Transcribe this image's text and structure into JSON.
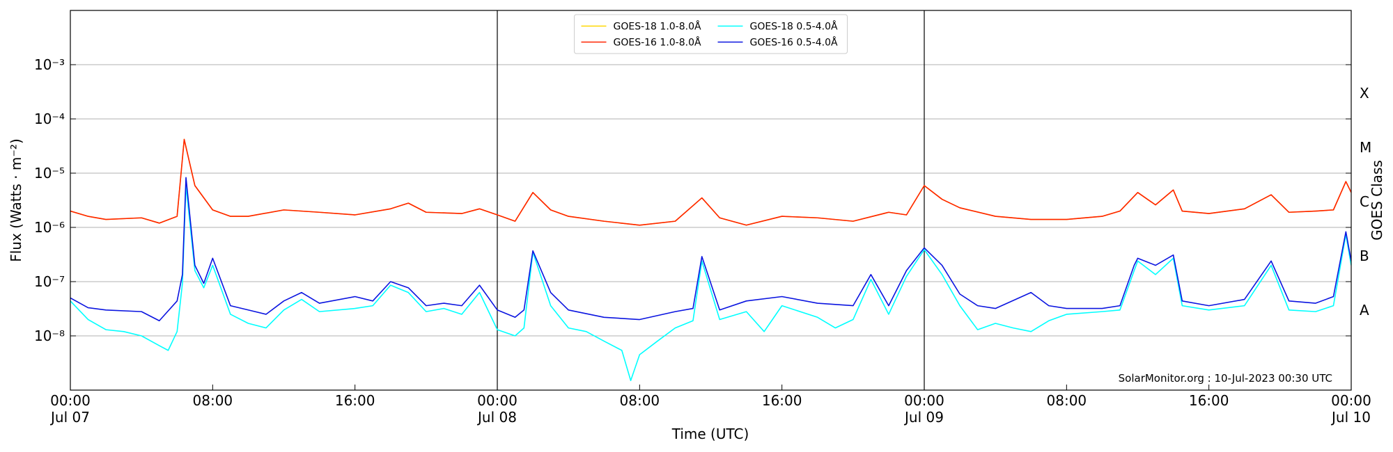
{
  "chart_data": {
    "type": "line",
    "log_scale": true,
    "grid": true,
    "legend": "upper center",
    "xlabel": "Time (UTC)",
    "ylabel": "Flux (Watts · m⁻²)",
    "y2label": "GOES Class",
    "annotation": "SolarMonitor.org : 10-Jul-2023 00:30 UTC",
    "xlim": [
      "Jul 07 00:00",
      "Jul 10 00:00"
    ],
    "xticks": [
      {
        "value": "Jul 07 00:00",
        "label": "00:00\nJul 07"
      },
      {
        "value": "Jul 07 08:00",
        "label": "08:00"
      },
      {
        "value": "Jul 07 16:00",
        "label": "16:00"
      },
      {
        "value": "Jul 08 00:00",
        "label": "00:00\nJul 08"
      },
      {
        "value": "Jul 08 08:00",
        "label": "08:00"
      },
      {
        "value": "Jul 08 16:00",
        "label": "16:00"
      },
      {
        "value": "Jul 09 00:00",
        "label": "00:00\nJul 09"
      },
      {
        "value": "Jul 09 08:00",
        "label": "08:00"
      },
      {
        "value": "Jul 09 16:00",
        "label": "16:00"
      },
      {
        "value": "Jul 10 00:00",
        "label": "00:00\nJul 10"
      }
    ],
    "day_lines": [
      "Jul 08 00:00",
      "Jul 09 00:00"
    ],
    "ylim": [
      1e-09,
      0.01
    ],
    "yticks": [
      {
        "value": 1e-08,
        "label": "10⁻⁸"
      },
      {
        "value": 1e-07,
        "label": "10⁻⁷"
      },
      {
        "value": 1e-06,
        "label": "10⁻⁶"
      },
      {
        "value": 1e-05,
        "label": "10⁻⁵"
      },
      {
        "value": 0.0001,
        "label": "10⁻⁴"
      },
      {
        "value": 0.001,
        "label": "10⁻³"
      }
    ],
    "y2lim": [
      1e-09,
      0.01
    ],
    "y2ticks": [
      {
        "value": 3e-08,
        "label": "A"
      },
      {
        "value": 3e-07,
        "label": "B"
      },
      {
        "value": 3e-06,
        "label": "C"
      },
      {
        "value": 3e-05,
        "label": "M"
      },
      {
        "value": 0.0003,
        "label": "X"
      }
    ],
    "series": [
      {
        "name": "GOES-18 1.0-8.0Å",
        "color": "#ffd700",
        "x": [
          "Jul 07 00:00",
          "Jul 07 01:00",
          "Jul 07 02:00",
          "Jul 07 04:00",
          "Jul 07 05:00",
          "Jul 07 06:00",
          "Jul 07 06:24",
          "Jul 07 07:00",
          "Jul 07 08:00",
          "Jul 07 09:00",
          "Jul 07 10:00",
          "Jul 07 12:00",
          "Jul 07 14:00",
          "Jul 07 16:00",
          "Jul 07 18:00",
          "Jul 07 19:00",
          "Jul 07 20:00",
          "Jul 07 22:00",
          "Jul 07 23:00",
          "Jul 08 00:00",
          "Jul 08 01:00",
          "Jul 08 02:00",
          "Jul 08 03:00",
          "Jul 08 04:00",
          "Jul 08 06:00",
          "Jul 08 08:00",
          "Jul 08 10:00",
          "Jul 08 11:30",
          "Jul 08 12:30",
          "Jul 08 14:00",
          "Jul 08 16:00",
          "Jul 08 18:00",
          "Jul 08 20:00",
          "Jul 08 22:00",
          "Jul 08 23:00",
          "Jul 09 00:00",
          "Jul 09 01:00",
          "Jul 09 02:00",
          "Jul 09 04:00",
          "Jul 09 06:00",
          "Jul 09 08:00",
          "Jul 09 10:00",
          "Jul 09 11:00",
          "Jul 09 12:00",
          "Jul 09 13:00",
          "Jul 09 14:00",
          "Jul 09 14:30",
          "Jul 09 16:00",
          "Jul 09 18:00",
          "Jul 09 19:30",
          "Jul 09 20:30",
          "Jul 09 22:00",
          "Jul 09 23:00",
          "Jul 09 23:42",
          "Jul 10 00:00"
        ],
        "values": [
          2e-06,
          1.6e-06,
          1.4e-06,
          1.5e-06,
          1.2e-06,
          1.6e-06,
          4.2e-05,
          5.9e-06,
          2.1e-06,
          1.6e-06,
          1.6e-06,
          2.1e-06,
          1.9e-06,
          1.7e-06,
          2.2e-06,
          2.8e-06,
          1.9e-06,
          1.8e-06,
          2.2e-06,
          1.7e-06,
          1.3e-06,
          4.4e-06,
          2.1e-06,
          1.6e-06,
          1.3e-06,
          1.1e-06,
          1.3e-06,
          3.5e-06,
          1.5e-06,
          1.1e-06,
          1.6e-06,
          1.5e-06,
          1.3e-06,
          1.9e-06,
          1.7e-06,
          5.9e-06,
          3.3e-06,
          2.3e-06,
          1.6e-06,
          1.4e-06,
          1.4e-06,
          1.6e-06,
          2e-06,
          4.4e-06,
          2.6e-06,
          4.9e-06,
          2e-06,
          1.8e-06,
          2.2e-06,
          4e-06,
          1.9e-06,
          2e-06,
          2.1e-06,
          7e-06,
          4.4e-06
        ]
      },
      {
        "name": "GOES-16 1.0-8.0Å",
        "color": "#ff2200",
        "x": [
          "Jul 07 00:00",
          "Jul 07 01:00",
          "Jul 07 02:00",
          "Jul 07 04:00",
          "Jul 07 05:00",
          "Jul 07 06:00",
          "Jul 07 06:24",
          "Jul 07 07:00",
          "Jul 07 08:00",
          "Jul 07 09:00",
          "Jul 07 10:00",
          "Jul 07 12:00",
          "Jul 07 14:00",
          "Jul 07 16:00",
          "Jul 07 18:00",
          "Jul 07 19:00",
          "Jul 07 20:00",
          "Jul 07 22:00",
          "Jul 07 23:00",
          "Jul 08 00:00",
          "Jul 08 01:00",
          "Jul 08 02:00",
          "Jul 08 03:00",
          "Jul 08 04:00",
          "Jul 08 06:00",
          "Jul 08 08:00",
          "Jul 08 10:00",
          "Jul 08 11:30",
          "Jul 08 12:30",
          "Jul 08 14:00",
          "Jul 08 16:00",
          "Jul 08 18:00",
          "Jul 08 20:00",
          "Jul 08 22:00",
          "Jul 08 23:00",
          "Jul 09 00:00",
          "Jul 09 01:00",
          "Jul 09 02:00",
          "Jul 09 04:00",
          "Jul 09 06:00",
          "Jul 09 08:00",
          "Jul 09 10:00",
          "Jul 09 11:00",
          "Jul 09 12:00",
          "Jul 09 13:00",
          "Jul 09 14:00",
          "Jul 09 14:30",
          "Jul 09 16:00",
          "Jul 09 18:00",
          "Jul 09 19:30",
          "Jul 09 20:30",
          "Jul 09 22:00",
          "Jul 09 23:00",
          "Jul 09 23:42",
          "Jul 10 00:00"
        ],
        "values": [
          2e-06,
          1.6e-06,
          1.4e-06,
          1.5e-06,
          1.2e-06,
          1.6e-06,
          4.2e-05,
          5.9e-06,
          2.1e-06,
          1.6e-06,
          1.6e-06,
          2.1e-06,
          1.9e-06,
          1.7e-06,
          2.2e-06,
          2.8e-06,
          1.9e-06,
          1.8e-06,
          2.2e-06,
          1.7e-06,
          1.3e-06,
          4.4e-06,
          2.1e-06,
          1.6e-06,
          1.3e-06,
          1.1e-06,
          1.3e-06,
          3.5e-06,
          1.5e-06,
          1.1e-06,
          1.6e-06,
          1.5e-06,
          1.3e-06,
          1.9e-06,
          1.7e-06,
          5.9e-06,
          3.3e-06,
          2.3e-06,
          1.6e-06,
          1.4e-06,
          1.4e-06,
          1.6e-06,
          2e-06,
          4.4e-06,
          2.6e-06,
          4.9e-06,
          2e-06,
          1.8e-06,
          2.2e-06,
          4e-06,
          1.9e-06,
          2e-06,
          2.1e-06,
          7e-06,
          4.4e-06
        ]
      },
      {
        "name": "GOES-18 0.5-4.0Å",
        "color": "#00ffff",
        "x": [
          "Jul 07 00:00",
          "Jul 07 01:00",
          "Jul 07 02:00",
          "Jul 07 03:00",
          "Jul 07 04:00",
          "Jul 07 05:00",
          "Jul 07 05:30",
          "Jul 07 06:00",
          "Jul 07 06:18",
          "Jul 07 06:30",
          "Jul 07 07:00",
          "Jul 07 07:30",
          "Jul 07 08:00",
          "Jul 07 09:00",
          "Jul 07 10:00",
          "Jul 07 11:00",
          "Jul 07 12:00",
          "Jul 07 13:00",
          "Jul 07 14:00",
          "Jul 07 16:00",
          "Jul 07 17:00",
          "Jul 07 18:00",
          "Jul 07 19:00",
          "Jul 07 20:00",
          "Jul 07 21:00",
          "Jul 07 22:00",
          "Jul 07 23:00",
          "Jul 08 00:00",
          "Jul 08 01:00",
          "Jul 08 01:30",
          "Jul 08 02:00",
          "Jul 08 03:00",
          "Jul 08 04:00",
          "Jul 08 05:00",
          "Jul 08 06:00",
          "Jul 08 07:00",
          "Jul 08 07:30",
          "Jul 08 08:00",
          "Jul 08 09:00",
          "Jul 08 10:00",
          "Jul 08 11:00",
          "Jul 08 11:30",
          "Jul 08 12:30",
          "Jul 08 14:00",
          "Jul 08 15:00",
          "Jul 08 16:00",
          "Jul 08 18:00",
          "Jul 08 19:00",
          "Jul 08 20:00",
          "Jul 08 21:00",
          "Jul 08 22:00",
          "Jul 08 23:00",
          "Jul 09 00:00",
          "Jul 09 01:00",
          "Jul 09 02:00",
          "Jul 09 03:00",
          "Jul 09 04:00",
          "Jul 09 05:00",
          "Jul 09 06:00",
          "Jul 09 07:00",
          "Jul 09 08:00",
          "Jul 09 10:00",
          "Jul 09 11:00",
          "Jul 09 11:48",
          "Jul 09 12:00",
          "Jul 09 13:00",
          "Jul 09 14:00",
          "Jul 09 14:30",
          "Jul 09 16:00",
          "Jul 09 18:00",
          "Jul 09 19:30",
          "Jul 09 20:30",
          "Jul 09 22:00",
          "Jul 09 23:00",
          "Jul 09 23:42",
          "Jul 10 00:00"
        ],
        "values": [
          4.4e-08,
          2e-08,
          1.3e-08,
          1.2e-08,
          1e-08,
          6.6e-09,
          5.4e-09,
          1.2e-08,
          9.3e-08,
          5.9e-06,
          1.6e-07,
          7.7e-08,
          2e-07,
          2.5e-08,
          1.7e-08,
          1.4e-08,
          3e-08,
          4.7e-08,
          2.8e-08,
          3.2e-08,
          3.6e-08,
          8.6e-08,
          6.3e-08,
          2.8e-08,
          3.2e-08,
          2.5e-08,
          6.3e-08,
          1.3e-08,
          1e-08,
          1.4e-08,
          3.5e-07,
          3.6e-08,
          1.4e-08,
          1.2e-08,
          8e-09,
          5.4e-09,
          1.5e-09,
          4.5e-09,
          8e-09,
          1.4e-08,
          1.9e-08,
          2.4e-07,
          2e-08,
          2.8e-08,
          1.2e-08,
          3.6e-08,
          2.2e-08,
          1.4e-08,
          2e-08,
          1.1e-07,
          2.5e-08,
          1.25e-07,
          3.9e-07,
          1.35e-07,
          3.6e-08,
          1.3e-08,
          1.7e-08,
          1.4e-08,
          1.2e-08,
          1.9e-08,
          2.5e-08,
          2.8e-08,
          3e-08,
          1.6e-07,
          2.4e-07,
          1.35e-07,
          2.7e-07,
          3.6e-08,
          3e-08,
          3.6e-08,
          2e-07,
          3e-08,
          2.8e-08,
          3.6e-08,
          7.4e-07,
          2e-07
        ]
      },
      {
        "name": "GOES-16 0.5-4.0Å",
        "color": "#0a14e0",
        "x": [
          "Jul 07 00:00",
          "Jul 07 01:00",
          "Jul 07 02:00",
          "Jul 07 04:00",
          "Jul 07 05:00",
          "Jul 07 06:00",
          "Jul 07 06:18",
          "Jul 07 06:30",
          "Jul 07 07:00",
          "Jul 07 07:30",
          "Jul 07 08:00",
          "Jul 07 09:00",
          "Jul 07 10:00",
          "Jul 07 11:00",
          "Jul 07 12:00",
          "Jul 07 13:00",
          "Jul 07 14:00",
          "Jul 07 16:00",
          "Jul 07 17:00",
          "Jul 07 18:00",
          "Jul 07 19:00",
          "Jul 07 20:00",
          "Jul 07 21:00",
          "Jul 07 22:00",
          "Jul 07 23:00",
          "Jul 08 00:00",
          "Jul 08 01:00",
          "Jul 08 01:30",
          "Jul 08 02:00",
          "Jul 08 03:00",
          "Jul 08 04:00",
          "Jul 08 06:00",
          "Jul 08 08:00",
          "Jul 08 10:00",
          "Jul 08 11:00",
          "Jul 08 11:30",
          "Jul 08 12:30",
          "Jul 08 14:00",
          "Jul 08 16:00",
          "Jul 08 18:00",
          "Jul 08 20:00",
          "Jul 08 21:00",
          "Jul 08 22:00",
          "Jul 08 23:00",
          "Jul 09 00:00",
          "Jul 09 01:00",
          "Jul 09 02:00",
          "Jul 09 03:00",
          "Jul 09 04:00",
          "Jul 09 06:00",
          "Jul 09 07:00",
          "Jul 09 08:00",
          "Jul 09 10:00",
          "Jul 09 11:00",
          "Jul 09 11:48",
          "Jul 09 12:00",
          "Jul 09 13:00",
          "Jul 09 14:00",
          "Jul 09 14:30",
          "Jul 09 16:00",
          "Jul 09 18:00",
          "Jul 09 19:30",
          "Jul 09 20:30",
          "Jul 09 22:00",
          "Jul 09 23:00",
          "Jul 09 23:42",
          "Jul 10 00:00"
        ],
        "values": [
          5e-08,
          3.3e-08,
          3e-08,
          2.8e-08,
          1.9e-08,
          4.4e-08,
          1.35e-07,
          8.3e-06,
          2e-07,
          9.3e-08,
          2.7e-07,
          3.6e-08,
          3e-08,
          2.5e-08,
          4.4e-08,
          6.3e-08,
          4e-08,
          5.3e-08,
          4.4e-08,
          1e-07,
          7.7e-08,
          3.6e-08,
          4e-08,
          3.6e-08,
          8.6e-08,
          3e-08,
          2.2e-08,
          3e-08,
          3.7e-07,
          6.3e-08,
          3e-08,
          2.2e-08,
          2e-08,
          2.8e-08,
          3.2e-08,
          2.9e-07,
          3e-08,
          4.4e-08,
          5.3e-08,
          4e-08,
          3.6e-08,
          1.35e-07,
          3.6e-08,
          1.6e-07,
          4.2e-07,
          2e-07,
          5.9e-08,
          3.6e-08,
          3.2e-08,
          6.3e-08,
          3.6e-08,
          3.2e-08,
          3.2e-08,
          3.6e-08,
          2e-07,
          2.7e-07,
          2e-07,
          3.1e-07,
          4.4e-08,
          3.6e-08,
          4.7e-08,
          2.4e-07,
          4.4e-08,
          4e-08,
          5.3e-08,
          8.3e-07,
          2.4e-07
        ]
      }
    ]
  }
}
